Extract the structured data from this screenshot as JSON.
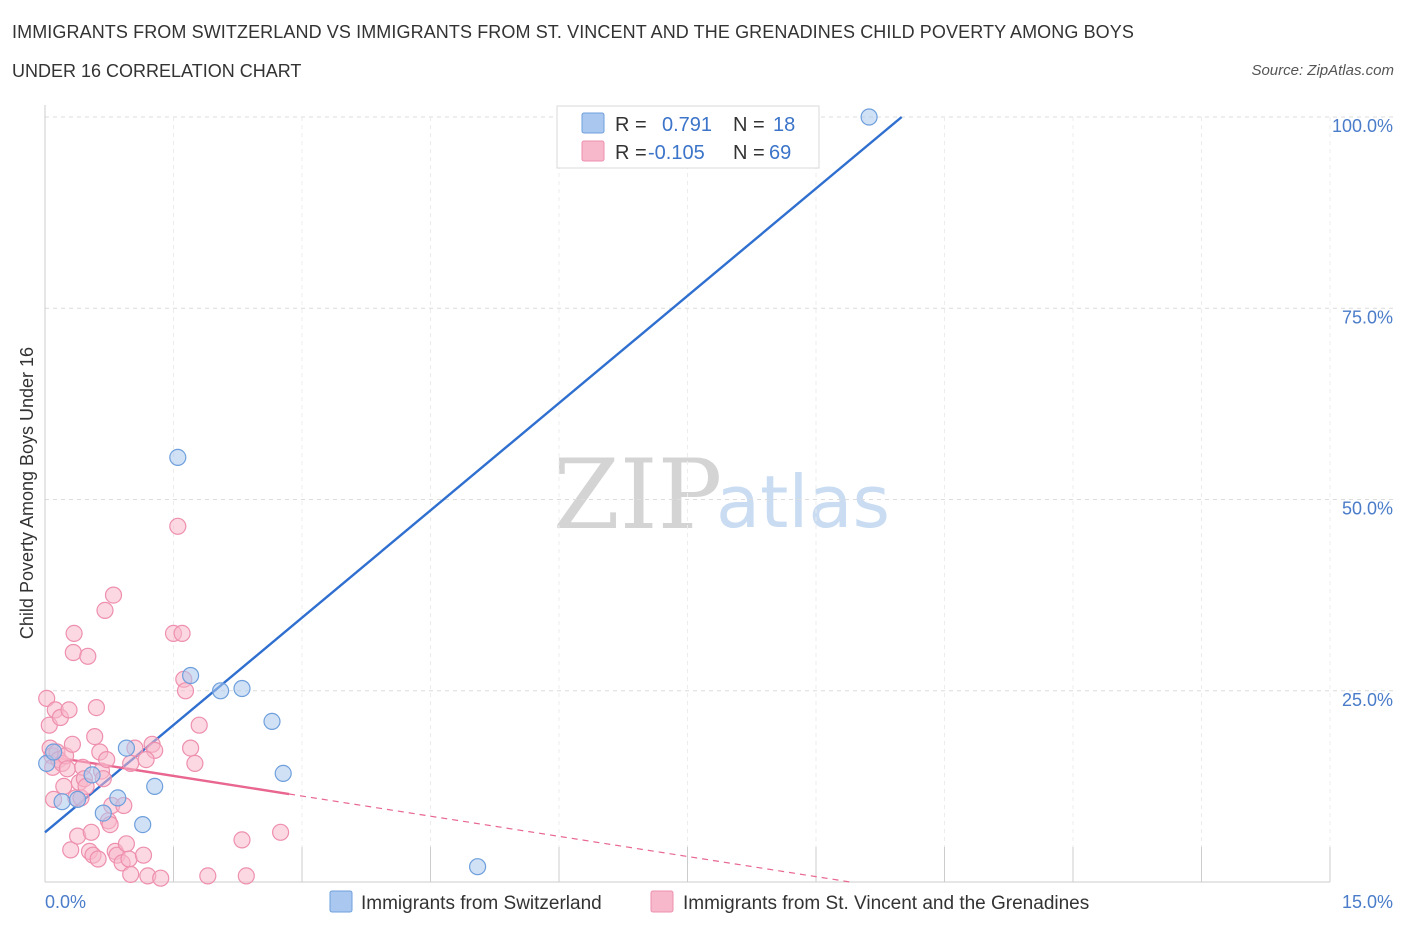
{
  "header": {
    "title": "IMMIGRANTS FROM SWITZERLAND VS IMMIGRANTS FROM ST. VINCENT AND THE GRENADINES CHILD POVERTY AMONG BOYS",
    "subtitle": "UNDER 16 CORRELATION CHART",
    "source": "Source: ZipAtlas.com"
  },
  "watermark": {
    "zip": "ZIP",
    "atlas": "atlas"
  },
  "legend": {
    "r_label": "R =",
    "n_label": "N =",
    "series": [
      {
        "r": "0.791",
        "n": "18"
      },
      {
        "r": "-0.105",
        "n": "69"
      }
    ]
  },
  "colors": {
    "blue_fill": "#aac8ef",
    "blue_stroke": "#6e9fdc",
    "blue_line": "#2f6fcf",
    "pink_fill": "#f7b8cb",
    "pink_stroke": "#ee8fae",
    "pink_line": "#e8668f",
    "grid": "#dcdcdc",
    "tick_text": "#4a7cc9"
  },
  "chart_data": {
    "type": "scatter",
    "title": "IMMIGRANTS FROM SWITZERLAND VS IMMIGRANTS FROM ST. VINCENT AND THE GRENADINES CHILD POVERTY AMONG BOYS UNDER 16 CORRELATION CHART",
    "xlabel": "",
    "ylabel": "Child Poverty Among Boys Under 16",
    "xlim": [
      0,
      15
    ],
    "ylim": [
      0,
      100
    ],
    "x_tick_labels": [
      "0.0%",
      "15.0%"
    ],
    "y_ticks": [
      25,
      50,
      75,
      100
    ],
    "y_tick_labels": [
      "25.0%",
      "50.0%",
      "75.0%",
      "100.0%"
    ],
    "grid": true,
    "series": [
      {
        "name": "Immigrants from Switzerland",
        "color": "blue",
        "trend": {
          "x": [
            0.0,
            10.0
          ],
          "y": [
            6.5,
            100.0
          ],
          "dashed_extension": false
        },
        "points": [
          [
            0.02,
            15.5
          ],
          [
            0.1,
            17.0
          ],
          [
            0.2,
            10.5
          ],
          [
            0.38,
            10.8
          ],
          [
            0.55,
            14.0
          ],
          [
            0.68,
            9.0
          ],
          [
            0.85,
            11.0
          ],
          [
            0.95,
            17.5
          ],
          [
            1.14,
            7.5
          ],
          [
            1.28,
            12.5
          ],
          [
            1.55,
            55.5
          ],
          [
            1.7,
            27.0
          ],
          [
            2.05,
            25.0
          ],
          [
            2.3,
            25.3
          ],
          [
            2.65,
            21.0
          ],
          [
            2.78,
            14.2
          ],
          [
            5.05,
            2.0
          ],
          [
            9.62,
            100.0
          ]
        ]
      },
      {
        "name": "Immigrants from St. Vincent and the Grenadines",
        "color": "pink",
        "trend": {
          "x": [
            0.0,
            2.85
          ],
          "y": [
            16.5,
            11.5
          ],
          "dashed_extension": {
            "x": [
              2.85,
              9.4
            ],
            "y": [
              11.5,
              0.0
            ]
          }
        },
        "points": [
          [
            0.02,
            24.0
          ],
          [
            0.05,
            20.5
          ],
          [
            0.06,
            17.5
          ],
          [
            0.08,
            16.5
          ],
          [
            0.09,
            15.0
          ],
          [
            0.1,
            10.8
          ],
          [
            0.12,
            22.5
          ],
          [
            0.14,
            17.0
          ],
          [
            0.16,
            16.0
          ],
          [
            0.18,
            21.5
          ],
          [
            0.2,
            15.5
          ],
          [
            0.22,
            12.5
          ],
          [
            0.24,
            16.5
          ],
          [
            0.26,
            14.8
          ],
          [
            0.28,
            22.5
          ],
          [
            0.3,
            4.2
          ],
          [
            0.32,
            18.0
          ],
          [
            0.33,
            30.0
          ],
          [
            0.34,
            32.5
          ],
          [
            0.36,
            11.0
          ],
          [
            0.38,
            6.0
          ],
          [
            0.4,
            13.0
          ],
          [
            0.42,
            11.0
          ],
          [
            0.44,
            15.0
          ],
          [
            0.46,
            13.5
          ],
          [
            0.48,
            12.5
          ],
          [
            0.5,
            29.5
          ],
          [
            0.52,
            4.0
          ],
          [
            0.54,
            6.5
          ],
          [
            0.56,
            3.5
          ],
          [
            0.58,
            19.0
          ],
          [
            0.6,
            22.8
          ],
          [
            0.62,
            3.0
          ],
          [
            0.64,
            17.0
          ],
          [
            0.66,
            14.5
          ],
          [
            0.68,
            13.5
          ],
          [
            0.7,
            35.5
          ],
          [
            0.72,
            16.0
          ],
          [
            0.74,
            8.0
          ],
          [
            0.76,
            7.5
          ],
          [
            0.78,
            10.0
          ],
          [
            0.8,
            37.5
          ],
          [
            0.82,
            4.0
          ],
          [
            0.84,
            3.5
          ],
          [
            0.9,
            2.5
          ],
          [
            0.92,
            10.0
          ],
          [
            0.95,
            5.0
          ],
          [
            0.98,
            3.0
          ],
          [
            1.0,
            1.0
          ],
          [
            1.05,
            17.5
          ],
          [
            1.15,
            3.5
          ],
          [
            1.2,
            0.8
          ],
          [
            1.25,
            18.0
          ],
          [
            1.28,
            17.2
          ],
          [
            1.35,
            0.5
          ],
          [
            1.5,
            32.5
          ],
          [
            1.55,
            46.5
          ],
          [
            1.6,
            32.5
          ],
          [
            1.62,
            26.5
          ],
          [
            1.64,
            25.0
          ],
          [
            1.7,
            17.5
          ],
          [
            1.75,
            15.5
          ],
          [
            1.8,
            20.5
          ],
          [
            1.9,
            0.8
          ],
          [
            2.3,
            5.5
          ],
          [
            2.35,
            0.8
          ],
          [
            2.75,
            6.5
          ],
          [
            1.0,
            15.5
          ],
          [
            1.18,
            16.0
          ]
        ]
      }
    ]
  },
  "bottom_legend": {
    "items": [
      "Immigrants from Switzerland",
      "Immigrants from St. Vincent and the Grenadines"
    ]
  }
}
